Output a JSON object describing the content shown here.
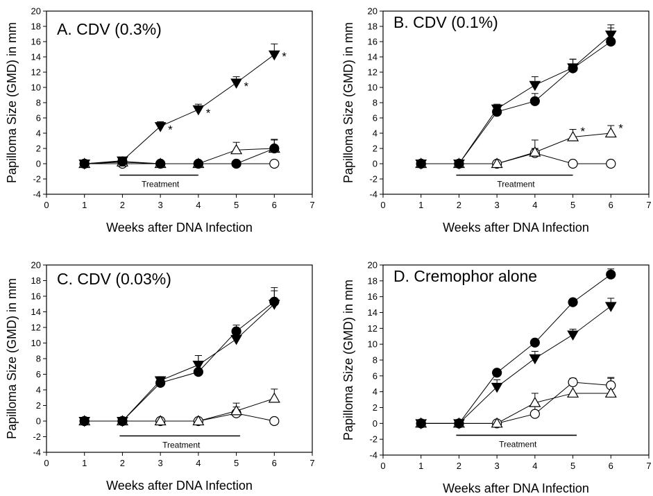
{
  "chart_data": [
    {
      "type": "line",
      "title": "A. CDV (0.3%)",
      "xlabel": "Weeks after DNA Infection",
      "ylabel": "Papilloma Size (GMD) in mm",
      "xlim": [
        0,
        7
      ],
      "ylim": [
        -4,
        20
      ],
      "xticks": [
        0,
        1,
        2,
        3,
        4,
        5,
        6,
        7
      ],
      "yticks": [
        -4,
        -2,
        0,
        2,
        4,
        6,
        8,
        10,
        12,
        14,
        16,
        18,
        20
      ],
      "x": [
        1,
        2,
        3,
        4,
        5,
        6
      ],
      "treatment": {
        "label": "Treatment",
        "start": 2,
        "end": 4,
        "y": -1.5
      },
      "series": [
        {
          "marker": "filled-triangle-down",
          "values": [
            0,
            0.4,
            4.9,
            7.1,
            10.6,
            14.3
          ],
          "errors": [
            0,
            0.3,
            0.6,
            0.7,
            0.8,
            1.4
          ]
        },
        {
          "marker": "filled-circle",
          "values": [
            0,
            0.3,
            0,
            0,
            0,
            2.0
          ],
          "errors": [
            0,
            0.2,
            0,
            0,
            0,
            1.1
          ]
        },
        {
          "marker": "open-triangle-up",
          "values": [
            0,
            0.2,
            0,
            0,
            1.8,
            2.0
          ],
          "errors": [
            0,
            0.2,
            0,
            0,
            1.0,
            1.2
          ]
        },
        {
          "marker": "open-circle",
          "values": [
            0,
            0,
            0,
            0,
            0,
            0
          ],
          "errors": [
            0,
            0,
            0,
            0,
            0,
            0
          ]
        }
      ],
      "annotations": [
        {
          "text": "*",
          "x": 3.2,
          "y": 4.4
        },
        {
          "text": "*",
          "x": 4.2,
          "y": 6.6
        },
        {
          "text": "*",
          "x": 5.2,
          "y": 10.1
        },
        {
          "text": "*",
          "x": 6.2,
          "y": 14.0
        }
      ]
    },
    {
      "type": "line",
      "title": "B. CDV (0.1%)",
      "xlabel": "Weeks after DNA Infection",
      "ylabel": "Papilloma Size (GMD) in mm",
      "xlim": [
        0,
        7
      ],
      "ylim": [
        -4,
        20
      ],
      "xticks": [
        0,
        1,
        2,
        3,
        4,
        5,
        6,
        7
      ],
      "yticks": [
        -4,
        -2,
        0,
        2,
        4,
        6,
        8,
        10,
        12,
        14,
        16,
        18,
        20
      ],
      "x": [
        1,
        2,
        3,
        4,
        5,
        6
      ],
      "treatment": {
        "label": "Treatment",
        "start": 2,
        "end": 5,
        "y": -1.5
      },
      "series": [
        {
          "marker": "filled-triangle-down",
          "values": [
            0,
            0,
            7.2,
            10.3,
            12.6,
            16.9
          ],
          "errors": [
            0,
            0,
            0.6,
            1.1,
            1.1,
            1.3
          ]
        },
        {
          "marker": "filled-circle",
          "values": [
            0,
            0,
            6.8,
            8.2,
            12.5,
            16.0
          ],
          "errors": [
            0,
            0,
            0.5,
            1.0,
            1.2,
            1.8
          ]
        },
        {
          "marker": "open-triangle-up",
          "values": [
            0,
            0,
            0,
            1.5,
            3.5,
            4.0
          ],
          "errors": [
            0,
            0,
            0,
            1.6,
            1.0,
            1.0
          ]
        },
        {
          "marker": "open-circle",
          "values": [
            0,
            0,
            0,
            1.4,
            0,
            0
          ],
          "errors": [
            0,
            0,
            0,
            0.6,
            0,
            0
          ]
        }
      ],
      "annotations": [
        {
          "text": "*",
          "x": 5.2,
          "y": 4.2
        },
        {
          "text": "*",
          "x": 6.2,
          "y": 4.6
        }
      ]
    },
    {
      "type": "line",
      "title": "C. CDV (0.03%)",
      "xlabel": "Weeks after DNA Infection",
      "ylabel": "Papilloma Size (GMD) in mm",
      "xlim": [
        0,
        7
      ],
      "ylim": [
        -4,
        20
      ],
      "xticks": [
        0,
        1,
        2,
        3,
        4,
        5,
        6,
        7
      ],
      "yticks": [
        -4,
        -2,
        0,
        2,
        4,
        6,
        8,
        10,
        12,
        14,
        16,
        18,
        20
      ],
      "x": [
        1,
        2,
        3,
        4,
        5,
        6
      ],
      "treatment": {
        "label": "Treatment",
        "start": 2,
        "end": 5.1,
        "y": -1.9
      },
      "series": [
        {
          "marker": "filled-triangle-down",
          "values": [
            0,
            0,
            5.2,
            7.2,
            10.5,
            15.0
          ],
          "errors": [
            0,
            0,
            0.5,
            1.2,
            1.0,
            1.7
          ]
        },
        {
          "marker": "filled-circle",
          "values": [
            0,
            0,
            4.9,
            6.3,
            11.5,
            15.3
          ],
          "errors": [
            0,
            0,
            0.5,
            2.1,
            0.8,
            1.8
          ]
        },
        {
          "marker": "open-triangle-up",
          "values": [
            0,
            0,
            0,
            0,
            1.3,
            2.9
          ],
          "errors": [
            0,
            0,
            0,
            0,
            1.0,
            1.2
          ]
        },
        {
          "marker": "open-circle",
          "values": [
            0,
            0,
            0,
            0,
            1.0,
            0
          ],
          "errors": [
            0,
            0,
            0,
            0,
            0.8,
            0
          ]
        }
      ],
      "annotations": []
    },
    {
      "type": "line",
      "title": "D. Cremophor alone",
      "xlabel": "Weeks after DNA Infection",
      "ylabel": "Papilloma Size (GMD) in mm",
      "xlim": [
        0,
        7
      ],
      "ylim": [
        -4,
        20
      ],
      "xticks": [
        0,
        1,
        2,
        3,
        4,
        5,
        6,
        7
      ],
      "yticks": [
        -4,
        -2,
        0,
        2,
        4,
        6,
        8,
        10,
        12,
        14,
        16,
        18,
        20
      ],
      "x": [
        1,
        2,
        3,
        4,
        5,
        6
      ],
      "treatment": {
        "label": "Treatment",
        "start": 2,
        "end": 5.1,
        "y": -1.5
      },
      "series": [
        {
          "marker": "filled-circle",
          "values": [
            0,
            0,
            6.4,
            10.2,
            15.3,
            18.8
          ],
          "errors": [
            0,
            0,
            0.3,
            0.4,
            0.3,
            0.7
          ]
        },
        {
          "marker": "filled-triangle-down",
          "values": [
            0,
            0,
            4.6,
            8.2,
            11.2,
            14.8
          ],
          "errors": [
            0,
            0,
            0.9,
            0.9,
            0.7,
            1.0
          ]
        },
        {
          "marker": "open-triangle-up",
          "values": [
            0,
            0,
            0,
            2.6,
            3.8,
            3.8
          ],
          "errors": [
            0,
            0,
            0,
            1.2,
            1.5,
            2.0
          ]
        },
        {
          "marker": "open-circle",
          "values": [
            0,
            0,
            0,
            1.2,
            5.2,
            4.8
          ],
          "errors": [
            0,
            0,
            0,
            1.0,
            0.5,
            0.9
          ]
        }
      ],
      "annotations": []
    }
  ]
}
